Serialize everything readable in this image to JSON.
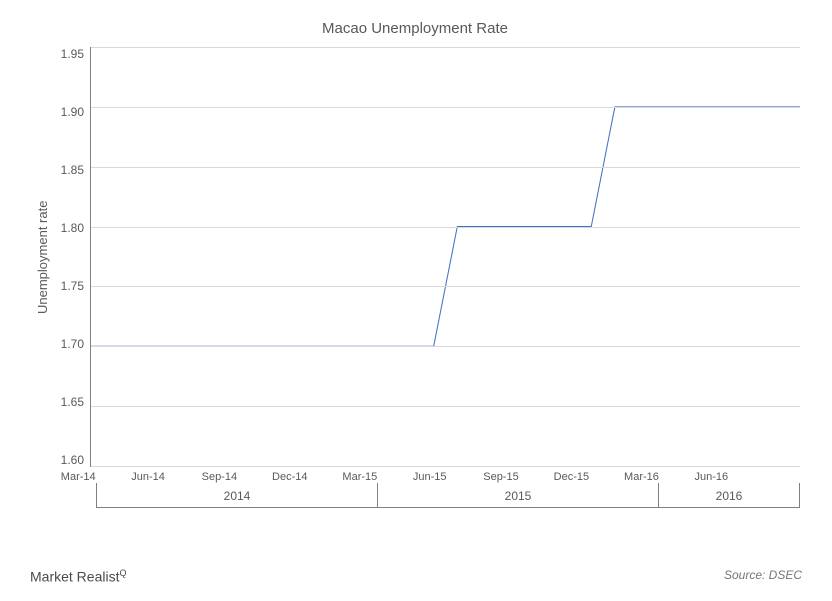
{
  "chart": {
    "type": "line",
    "title": "Macao Unemployment Rate",
    "title_fontsize": 15,
    "title_color": "#595959",
    "ylabel": "Unemployment rate",
    "ylabel_fontsize": 13,
    "ylabel_color": "#595959",
    "background_color": "#ffffff",
    "grid_color": "#d9d9d9",
    "axis_color": "#808080",
    "line_color": "#4472c4",
    "line_width": 3,
    "ylim": [
      1.6,
      1.95
    ],
    "yticks": [
      1.6,
      1.65,
      1.7,
      1.75,
      1.8,
      1.85,
      1.9,
      1.95
    ],
    "ytick_labels": [
      "1.60",
      "1.65",
      "1.70",
      "1.75",
      "1.80",
      "1.85",
      "1.90",
      "1.95"
    ],
    "tick_fontsize": 12,
    "tick_color": "#595959",
    "x_categories": [
      "Mar-14",
      "Jun-14",
      "Sep-14",
      "Dec-14",
      "Mar-15",
      "Jun-15",
      "Sep-15",
      "Dec-15",
      "Mar-16",
      "Jun-16"
    ],
    "x_year_groups": [
      {
        "label": "2014",
        "span": 4
      },
      {
        "label": "2015",
        "span": 4
      },
      {
        "label": "2016",
        "span": 2
      }
    ],
    "series": {
      "name": "Unemployment rate",
      "values": [
        1.7,
        1.7,
        1.7,
        1.7,
        1.7,
        1.8,
        1.8,
        1.9,
        1.9,
        1.9
      ]
    },
    "extend_line_to_right_edge": true
  },
  "footer": {
    "brand": "Market Realist",
    "brand_mark": "Q",
    "source": "Source: DSEC"
  }
}
